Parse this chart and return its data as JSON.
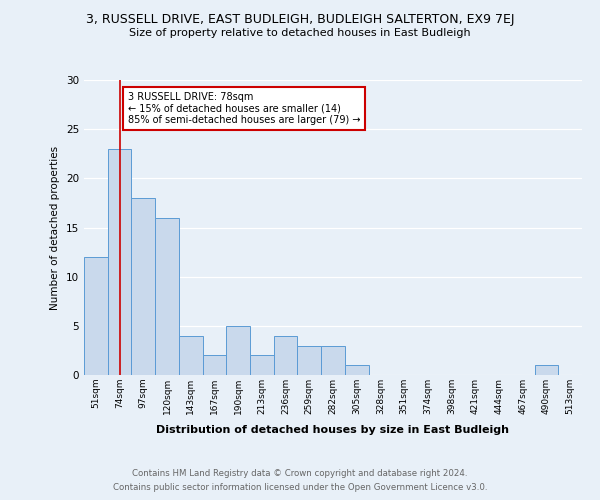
{
  "title_line1": "3, RUSSELL DRIVE, EAST BUDLEIGH, BUDLEIGH SALTERTON, EX9 7EJ",
  "title_line2": "Size of property relative to detached houses in East Budleigh",
  "xlabel": "Distribution of detached houses by size in East Budleigh",
  "ylabel": "Number of detached properties",
  "categories": [
    "51sqm",
    "74sqm",
    "97sqm",
    "120sqm",
    "143sqm",
    "167sqm",
    "190sqm",
    "213sqm",
    "236sqm",
    "259sqm",
    "282sqm",
    "305sqm",
    "328sqm",
    "351sqm",
    "374sqm",
    "398sqm",
    "421sqm",
    "444sqm",
    "467sqm",
    "490sqm",
    "513sqm"
  ],
  "values": [
    12,
    23,
    18,
    16,
    4,
    2,
    5,
    2,
    4,
    3,
    3,
    1,
    0,
    0,
    0,
    0,
    0,
    0,
    0,
    1,
    0
  ],
  "bar_color": "#c9d9ec",
  "bar_edge_color": "#5b9bd5",
  "vline_x": 1,
  "vline_color": "#cc0000",
  "annotation_line1": "3 RUSSELL DRIVE: 78sqm",
  "annotation_line2": "← 15% of detached houses are smaller (14)",
  "annotation_line3": "85% of semi-detached houses are larger (79) →",
  "annotation_box_color": "#ffffff",
  "annotation_box_edge_color": "#cc0000",
  "ylim": [
    0,
    30
  ],
  "yticks": [
    0,
    5,
    10,
    15,
    20,
    25,
    30
  ],
  "footer_line1": "Contains HM Land Registry data © Crown copyright and database right 2024.",
  "footer_line2": "Contains public sector information licensed under the Open Government Licence v3.0.",
  "bg_color": "#e8f0f8",
  "plot_bg_color": "#e8f0f8"
}
